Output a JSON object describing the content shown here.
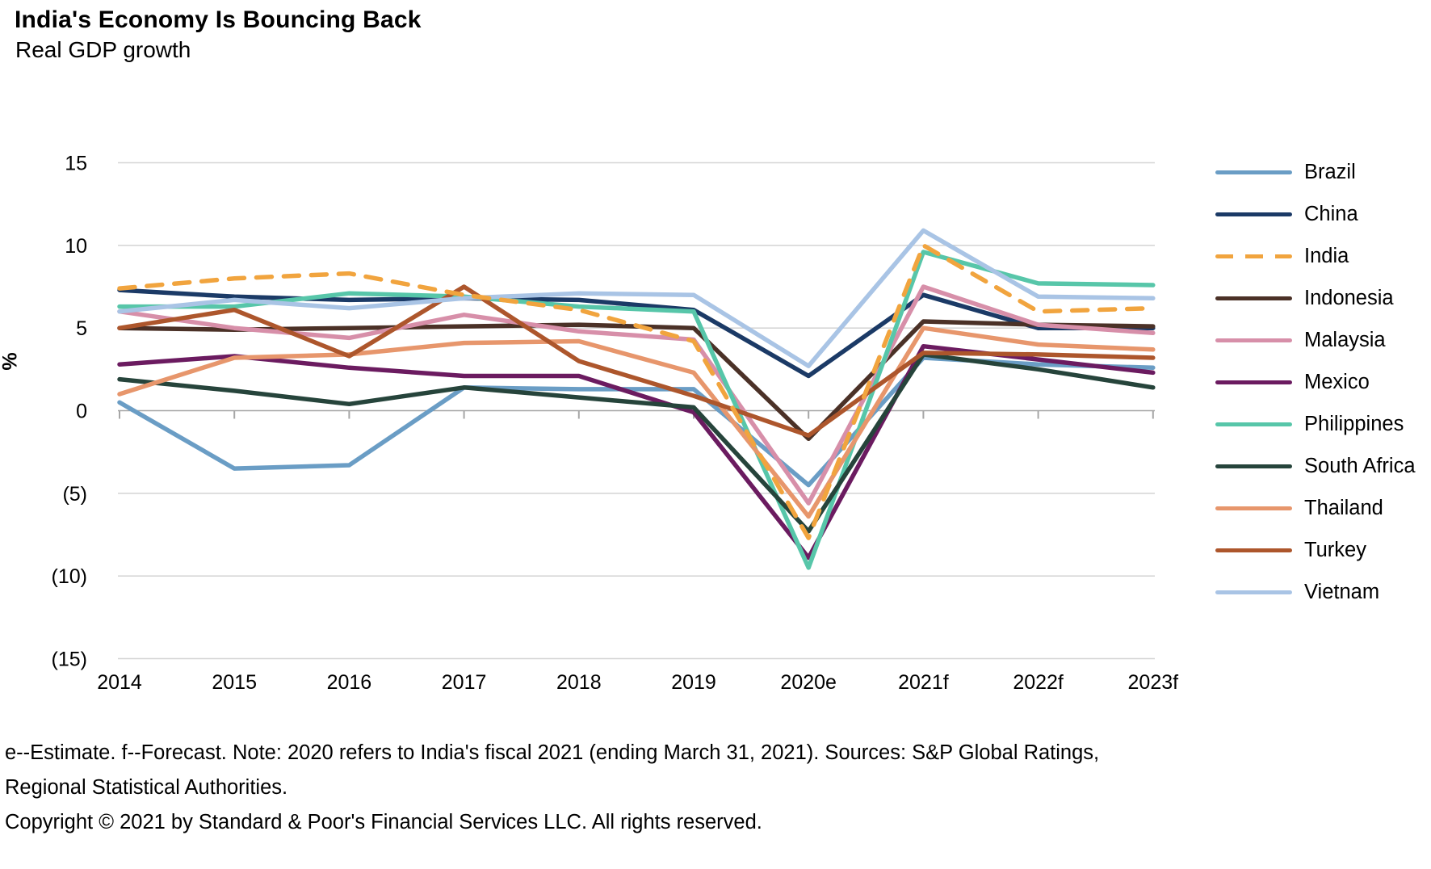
{
  "chart_data": {
    "type": "line",
    "title": "India's Economy Is Bouncing Back",
    "subtitle": "Real GDP growth",
    "ylabel": "%",
    "ylim": [
      -15,
      15
    ],
    "ytick_step": 5,
    "ytick_labels": [
      "15",
      "10",
      "5",
      "0",
      "(5)",
      "(10)",
      "(15)"
    ],
    "grid": "horizontal",
    "grid_color": "#d6d6d6",
    "zero_line_color": "#a6a6a6",
    "legend_position": "right",
    "categories": [
      "2014",
      "2015",
      "2016",
      "2017",
      "2018",
      "2019",
      "2020e",
      "2021f",
      "2022f",
      "2023f"
    ],
    "series": [
      {
        "name": "Brazil",
        "color": "#6a9dc5",
        "dash": false,
        "values": [
          0.5,
          -3.5,
          -3.3,
          1.4,
          1.3,
          1.3,
          -4.5,
          3.2,
          2.8,
          2.6
        ]
      },
      {
        "name": "China",
        "color": "#1b3a66",
        "dash": false,
        "values": [
          7.3,
          6.9,
          6.7,
          6.8,
          6.7,
          6.1,
          2.1,
          7.0,
          5.0,
          5.0
        ]
      },
      {
        "name": "India",
        "color": "#f1a43e",
        "dash": true,
        "values": [
          7.4,
          8.0,
          8.3,
          7.0,
          6.1,
          4.2,
          -7.7,
          10.0,
          6.0,
          6.2
        ]
      },
      {
        "name": "Indonesia",
        "color": "#4b3127",
        "dash": false,
        "values": [
          5.0,
          4.9,
          5.0,
          5.1,
          5.2,
          5.0,
          -1.7,
          5.4,
          5.2,
          5.1
        ]
      },
      {
        "name": "Malaysia",
        "color": "#d78fa9",
        "dash": false,
        "values": [
          6.0,
          5.0,
          4.4,
          5.8,
          4.8,
          4.3,
          -5.6,
          7.5,
          5.2,
          4.7
        ]
      },
      {
        "name": "Mexico",
        "color": "#6b1b60",
        "dash": false,
        "values": [
          2.8,
          3.3,
          2.6,
          2.1,
          2.1,
          -0.1,
          -8.9,
          3.9,
          3.1,
          2.3
        ]
      },
      {
        "name": "Philippines",
        "color": "#57c6a9",
        "dash": false,
        "values": [
          6.3,
          6.3,
          7.1,
          6.9,
          6.3,
          6.0,
          -9.5,
          9.6,
          7.7,
          7.6
        ]
      },
      {
        "name": "South Africa",
        "color": "#26443b",
        "dash": false,
        "values": [
          1.9,
          1.2,
          0.4,
          1.4,
          0.8,
          0.2,
          -7.3,
          3.4,
          2.5,
          1.4
        ]
      },
      {
        "name": "Thailand",
        "color": "#e7966c",
        "dash": false,
        "values": [
          1.0,
          3.2,
          3.4,
          4.1,
          4.2,
          2.3,
          -6.4,
          5.0,
          4.0,
          3.7
        ]
      },
      {
        "name": "Turkey",
        "color": "#ad562c",
        "dash": false,
        "values": [
          5.0,
          6.1,
          3.3,
          7.5,
          3.0,
          0.9,
          -1.5,
          3.5,
          3.4,
          3.2
        ]
      },
      {
        "name": "Vietnam",
        "color": "#a9c4e5",
        "dash": false,
        "values": [
          6.0,
          6.7,
          6.2,
          6.8,
          7.1,
          7.0,
          2.7,
          10.9,
          6.9,
          6.8
        ]
      }
    ]
  },
  "footer": {
    "note": "e--Estimate. f--Forecast. Note: 2020 refers to India's fiscal 2021 (ending March 31, 2021). Sources: S&P Global Ratings, Regional Statistical Authorities.",
    "copyright": "Copyright © 2021 by Standard & Poor's Financial Services LLC. All rights reserved."
  }
}
